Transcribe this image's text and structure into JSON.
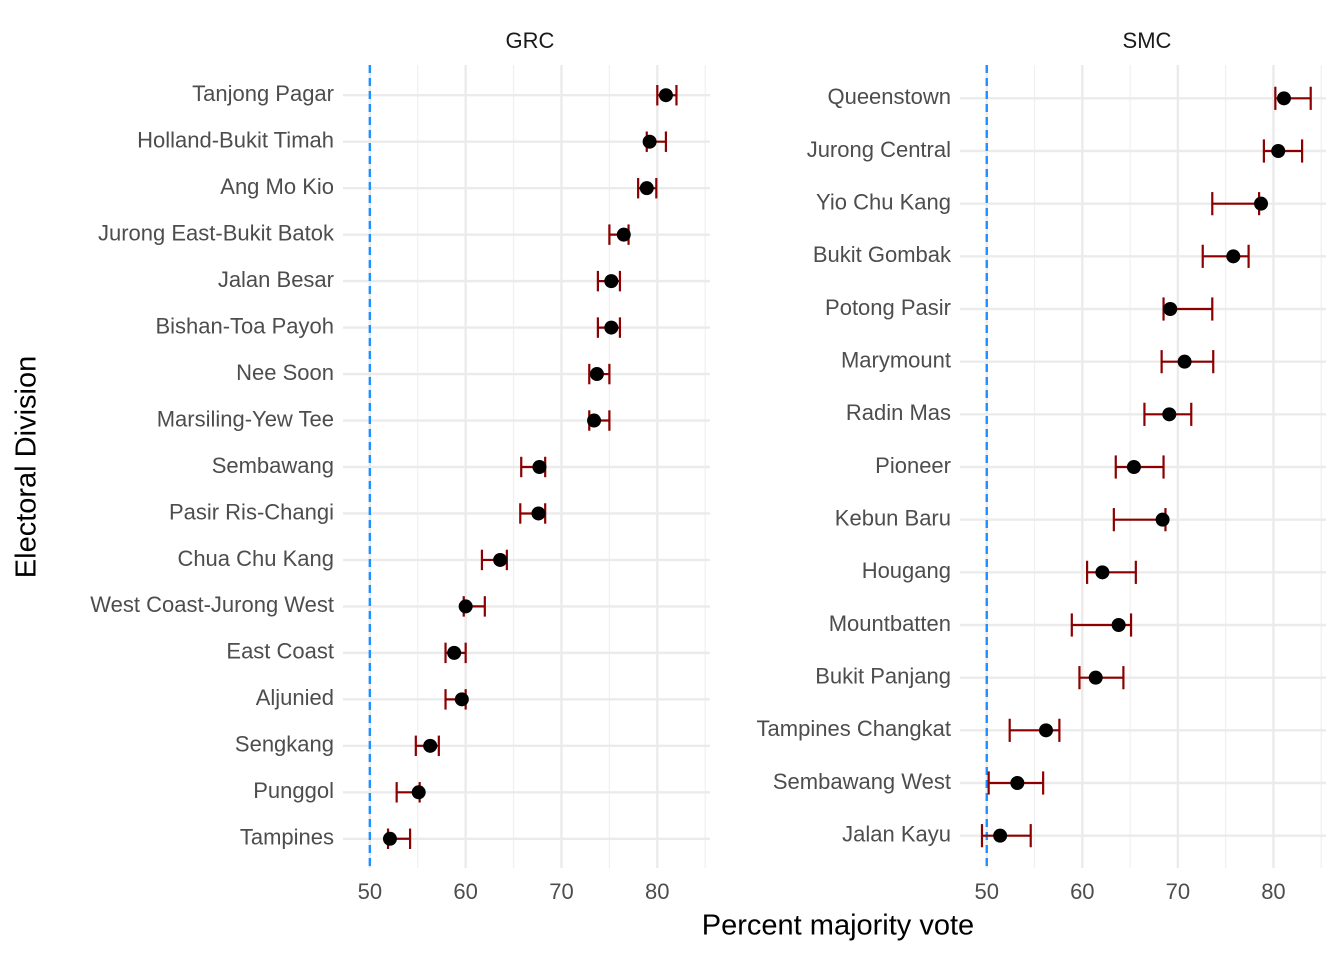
{
  "chart_data": [
    {
      "type": "errorbar",
      "title": "GRC",
      "categories": [
        "Tanjong Pagar",
        "Holland-Bukit Timah",
        "Ang Mo Kio",
        "Jurong East-Bukit Batok",
        "Jalan Besar",
        "Bishan-Toa Payoh",
        "Nee Soon",
        "Marsiling-Yew Tee",
        "Sembawang",
        "Pasir Ris-Changi",
        "Chua Chu Kang",
        "West Coast-Jurong West",
        "East Coast",
        "Aljunied",
        "Sengkang",
        "Punggol",
        "Tampines"
      ],
      "values": [
        80.9,
        79.2,
        78.9,
        76.5,
        75.2,
        75.2,
        73.7,
        73.4,
        67.7,
        67.6,
        63.6,
        60.0,
        58.8,
        59.6,
        56.3,
        55.1,
        52.1
      ],
      "lower": [
        80.0,
        78.9,
        78.0,
        75.0,
        73.8,
        73.8,
        72.9,
        72.9,
        65.8,
        65.7,
        61.7,
        59.8,
        57.9,
        57.9,
        54.8,
        52.8,
        51.9
      ],
      "upper": [
        82.0,
        80.9,
        79.9,
        77.0,
        76.1,
        76.1,
        75.0,
        75.0,
        68.3,
        68.3,
        64.3,
        62.0,
        60.0,
        60.0,
        57.2,
        55.2,
        54.2
      ],
      "xlim": [
        47.2,
        85.5
      ],
      "xticks": [
        50,
        60,
        70,
        80
      ],
      "x_minor_grid": [
        55,
        65,
        75,
        85
      ],
      "reference_line": 50,
      "point_color": "#000000",
      "bar_color": "#8b0000",
      "reference_color": "#1e90ff",
      "grid": true
    },
    {
      "type": "errorbar",
      "title": "SMC",
      "categories": [
        "Queenstown",
        "Jurong Central",
        "Yio Chu Kang",
        "Bukit Gombak",
        "Potong Pasir",
        "Marymount",
        "Radin Mas",
        "Pioneer",
        "Kebun Baru",
        "Hougang",
        "Mountbatten",
        "Bukit Panjang",
        "Tampines Changkat",
        "Sembawang West",
        "Jalan Kayu"
      ],
      "values": [
        81.1,
        80.5,
        78.7,
        75.8,
        69.2,
        70.7,
        69.1,
        65.4,
        68.4,
        62.1,
        63.8,
        61.4,
        56.2,
        53.2,
        51.4
      ],
      "lower": [
        80.2,
        79.0,
        73.6,
        72.6,
        68.5,
        68.3,
        66.5,
        63.5,
        63.3,
        60.5,
        58.9,
        59.7,
        52.4,
        50.2,
        49.5
      ],
      "upper": [
        83.9,
        83.0,
        78.5,
        77.4,
        73.6,
        73.7,
        71.4,
        68.5,
        68.7,
        65.6,
        65.1,
        64.3,
        57.6,
        55.9,
        54.6
      ],
      "xlim": [
        47.2,
        85.5
      ],
      "xticks": [
        50,
        60,
        70,
        80
      ],
      "x_minor_grid": [
        55,
        65,
        75,
        85
      ],
      "reference_line": 50,
      "point_color": "#000000",
      "bar_color": "#8b0000",
      "reference_color": "#1e90ff",
      "grid": true
    }
  ],
  "axis_titles": {
    "x": "Percent majority vote",
    "y": "Electoral Division"
  }
}
